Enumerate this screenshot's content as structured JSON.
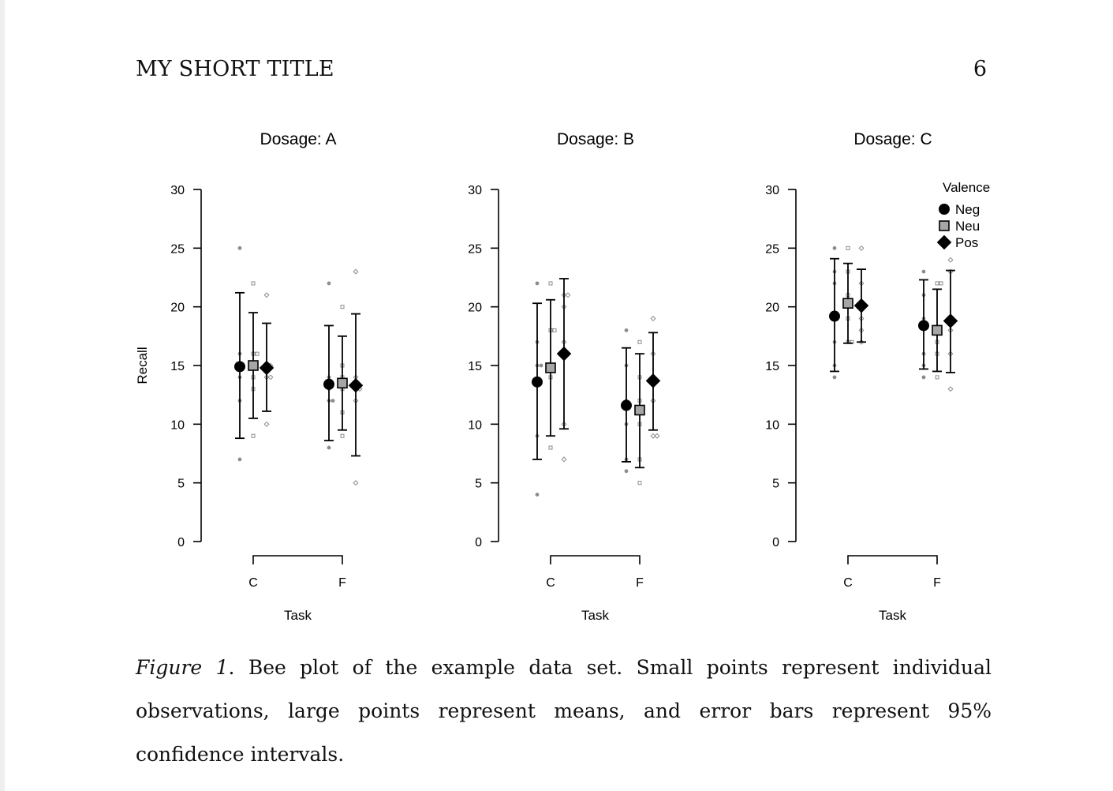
{
  "header": {
    "running_title": "MY SHORT TITLE",
    "page_number": "6"
  },
  "caption": {
    "label": "Figure 1",
    "punctuation": ".",
    "text": "Bee plot of the example data set. Small points represent individual observations, large points represent means, and error bars represent 95% confidence intervals."
  },
  "colors": {
    "neg": "#000000",
    "neu": "#a6a6a6",
    "pos": "#ffffff",
    "observation_points": "#8c8c8c",
    "axis": "#000000"
  },
  "chart_data": [
    {
      "type": "scatter",
      "title": "Dosage: A",
      "xlabel": "Task",
      "ylabel": "Recall",
      "ylim": [
        0,
        30
      ],
      "yticks": [
        0,
        5,
        10,
        15,
        20,
        25,
        30
      ],
      "categories": [
        "C",
        "F"
      ],
      "grid": false,
      "series": [
        {
          "name": "Neg",
          "marker": "circle",
          "means": [
            14.9,
            13.4
          ],
          "ci": [
            [
              8.8,
              21.2
            ],
            [
              8.6,
              18.4
            ]
          ],
          "observations": [
            [
              25,
              16,
              15,
              14,
              12,
              7
            ],
            [
              22,
              14,
              13,
              12,
              12,
              8
            ]
          ]
        },
        {
          "name": "Neu",
          "marker": "square",
          "means": [
            15.0,
            13.5
          ],
          "ci": [
            [
              10.5,
              19.5
            ],
            [
              9.5,
              17.5
            ]
          ],
          "observations": [
            [
              22,
              16,
              16,
              14,
              13,
              9
            ],
            [
              20,
              15,
              14,
              13,
              11,
              9
            ]
          ]
        },
        {
          "name": "Pos",
          "marker": "diamond",
          "means": [
            14.8,
            13.3
          ],
          "ci": [
            [
              11.1,
              18.6
            ],
            [
              7.3,
              19.4
            ]
          ],
          "observations": [
            [
              21,
              15,
              15,
              14,
              14,
              10
            ],
            [
              23,
              14,
              13,
              13,
              12,
              5
            ]
          ]
        }
      ]
    },
    {
      "type": "scatter",
      "title": "Dosage: B",
      "xlabel": "Task",
      "ylabel": "",
      "ylim": [
        0,
        30
      ],
      "yticks": [
        0,
        5,
        10,
        15,
        20,
        25,
        30
      ],
      "categories": [
        "C",
        "F"
      ],
      "grid": false,
      "series": [
        {
          "name": "Neg",
          "marker": "circle",
          "means": [
            13.6,
            11.6
          ],
          "ci": [
            [
              7.0,
              20.3
            ],
            [
              6.8,
              16.5
            ]
          ],
          "observations": [
            [
              22,
              17,
              15,
              15,
              9,
              4
            ],
            [
              18,
              15,
              12,
              10,
              7,
              6
            ]
          ]
        },
        {
          "name": "Neu",
          "marker": "square",
          "means": [
            14.8,
            11.2
          ],
          "ci": [
            [
              9.0,
              20.6
            ],
            [
              6.3,
              16.0
            ]
          ],
          "observations": [
            [
              22,
              18,
              18,
              15,
              14,
              8
            ],
            [
              17,
              14,
              12,
              10,
              7,
              5
            ]
          ]
        },
        {
          "name": "Pos",
          "marker": "diamond",
          "means": [
            16.0,
            13.7
          ],
          "ci": [
            [
              9.6,
              22.4
            ],
            [
              9.5,
              17.8
            ]
          ],
          "observations": [
            [
              21,
              21,
              20,
              17,
              10,
              7
            ],
            [
              19,
              16,
              14,
              12,
              9,
              9
            ]
          ]
        }
      ]
    },
    {
      "type": "scatter",
      "title": "Dosage: C",
      "xlabel": "Task",
      "ylabel": "",
      "ylim": [
        0,
        30
      ],
      "yticks": [
        0,
        5,
        10,
        15,
        20,
        25,
        30
      ],
      "categories": [
        "C",
        "F"
      ],
      "grid": false,
      "legend": {
        "title": "Valence",
        "placement": "top-right",
        "entries": [
          "Neg",
          "Neu",
          "Pos"
        ]
      },
      "series": [
        {
          "name": "Neg",
          "marker": "circle",
          "means": [
            19.2,
            18.4
          ],
          "ci": [
            [
              14.5,
              24.1
            ],
            [
              14.7,
              22.3
            ]
          ],
          "observations": [
            [
              25,
              23,
              22,
              17,
              15,
              14
            ],
            [
              23,
              21,
              19,
              16,
              15,
              14
            ]
          ]
        },
        {
          "name": "Neu",
          "marker": "square",
          "means": [
            20.3,
            18.0
          ],
          "ci": [
            [
              16.9,
              23.7
            ],
            [
              14.5,
              21.5
            ]
          ],
          "observations": [
            [
              25,
              23,
              21,
              19,
              17,
              17
            ],
            [
              22,
              22,
              18,
              17,
              16,
              14
            ]
          ]
        },
        {
          "name": "Pos",
          "marker": "diamond",
          "means": [
            20.1,
            18.8
          ],
          "ci": [
            [
              17.0,
              23.2
            ],
            [
              14.4,
              23.1
            ]
          ],
          "observations": [
            [
              25,
              22,
              20,
              19,
              18,
              17
            ],
            [
              24,
              23,
              19,
              18,
              16,
              13
            ]
          ]
        }
      ]
    }
  ]
}
